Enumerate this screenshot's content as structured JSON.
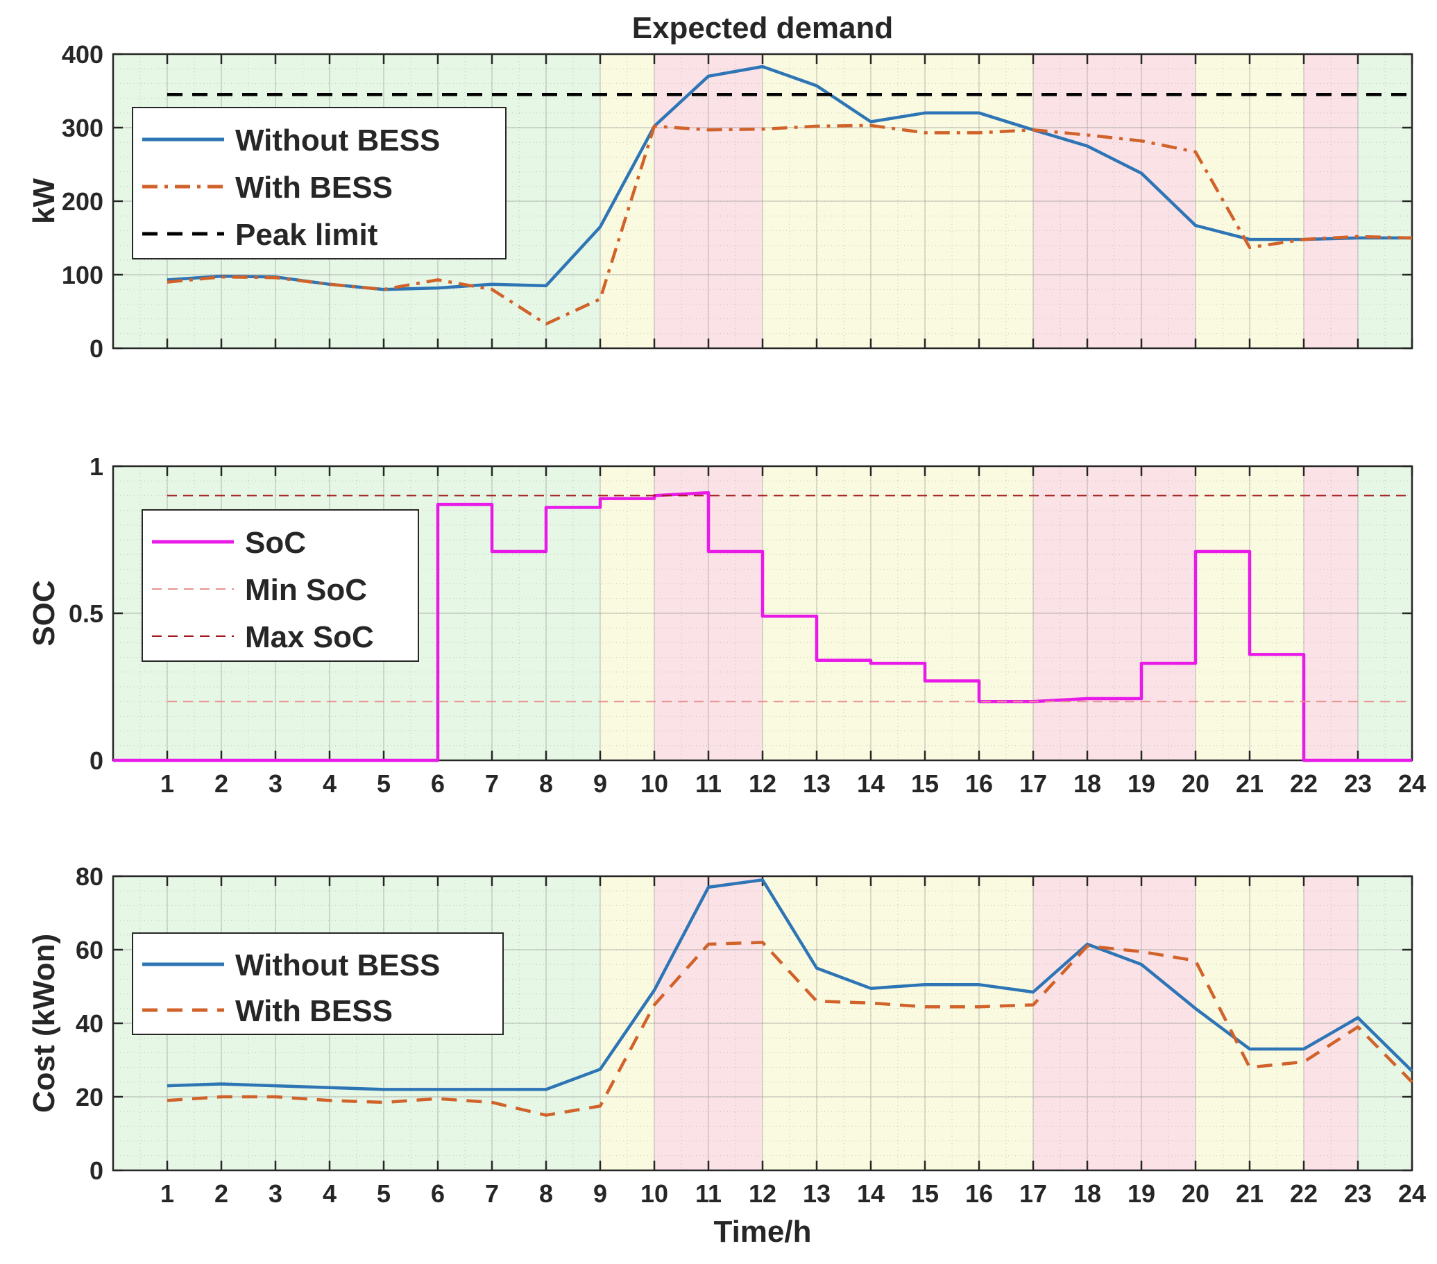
{
  "figure_title": "Expected demand",
  "xlabel": "Time/h",
  "x_ticks": [
    "1",
    "2",
    "3",
    "4",
    "5",
    "6",
    "7",
    "8",
    "9",
    "10",
    "11",
    "12",
    "13",
    "14",
    "15",
    "16",
    "17",
    "18",
    "19",
    "20",
    "21",
    "22",
    "23",
    "24"
  ],
  "colors": {
    "blue": "#2e75b6",
    "orange": "#d0622a",
    "magenta": "#e81ae8",
    "black": "#000000",
    "dark_red": "#a01818",
    "light_red": "#e89090",
    "offpeak": "#e6f7e6",
    "midpeak": "#fafae0",
    "onpeak": "#fae2e6"
  },
  "tariff_bands": [
    {
      "start": 0,
      "end": 9,
      "type": "offpeak"
    },
    {
      "start": 9,
      "end": 10,
      "type": "midpeak"
    },
    {
      "start": 10,
      "end": 12,
      "type": "onpeak"
    },
    {
      "start": 12,
      "end": 17,
      "type": "midpeak"
    },
    {
      "start": 17,
      "end": 20,
      "type": "onpeak"
    },
    {
      "start": 20,
      "end": 22,
      "type": "midpeak"
    },
    {
      "start": 22,
      "end": 23,
      "type": "onpeak"
    },
    {
      "start": 23,
      "end": 24,
      "type": "offpeak"
    }
  ],
  "chart_data": [
    {
      "type": "line",
      "title": "Expected demand",
      "ylabel": "kW",
      "xlabel": "",
      "xlim": [
        0,
        24
      ],
      "ylim": [
        0,
        400
      ],
      "y_ticks": [
        "0",
        "100",
        "200",
        "300",
        "400"
      ],
      "grid": true,
      "legend_position": "upper-left",
      "series": [
        {
          "name": "Without BESS",
          "style": "solid",
          "color": "blue",
          "x": [
            1,
            2,
            3,
            4,
            5,
            6,
            7,
            8,
            9,
            10,
            11,
            12,
            13,
            14,
            15,
            16,
            17,
            18,
            19,
            20,
            21,
            22,
            23,
            24
          ],
          "y": [
            93,
            98,
            97,
            87,
            80,
            82,
            87,
            85,
            165,
            302,
            370,
            383,
            357,
            308,
            320,
            320,
            297,
            275,
            238,
            167,
            148,
            148,
            150,
            150
          ]
        },
        {
          "name": "With BESS",
          "style": "dashdot",
          "color": "orange",
          "x": [
            1,
            2,
            3,
            4,
            5,
            6,
            7,
            8,
            9,
            10,
            11,
            12,
            13,
            14,
            15,
            16,
            17,
            18,
            19,
            20,
            21,
            22,
            23,
            24
          ],
          "y": [
            90,
            97,
            96,
            87,
            80,
            93,
            80,
            33,
            67,
            302,
            297,
            298,
            302,
            303,
            293,
            293,
            297,
            290,
            282,
            267,
            137,
            148,
            152,
            150
          ]
        },
        {
          "name": "Peak limit",
          "style": "dashed",
          "color": "black",
          "x": [
            1,
            24
          ],
          "y": [
            345,
            345
          ]
        }
      ]
    },
    {
      "type": "line",
      "title": "",
      "ylabel": "SOC",
      "xlabel": "",
      "xlim": [
        0,
        24
      ],
      "ylim": [
        0,
        1
      ],
      "y_ticks": [
        "0",
        "0.5",
        "1"
      ],
      "grid": true,
      "legend_position": "upper-left",
      "series": [
        {
          "name": "SoC",
          "style": "solid",
          "color": "magenta",
          "x": [
            0,
            6,
            6,
            7,
            7,
            8,
            8,
            9,
            9,
            10,
            10,
            11,
            11,
            12,
            12,
            13,
            13,
            14,
            14,
            15,
            15,
            16,
            16,
            17,
            17,
            18,
            18,
            19,
            19,
            20,
            20,
            21,
            21,
            22,
            22,
            24
          ],
          "y": [
            0,
            0,
            0.87,
            0.87,
            0.71,
            0.71,
            0.86,
            0.86,
            0.89,
            0.89,
            0.9,
            0.91,
            0.71,
            0.71,
            0.49,
            0.49,
            0.34,
            0.34,
            0.33,
            0.33,
            0.27,
            0.27,
            0.2,
            0.2,
            0.2,
            0.21,
            0.21,
            0.21,
            0.33,
            0.33,
            0.71,
            0.71,
            0.36,
            0.36,
            0,
            0
          ]
        },
        {
          "name": "Min SoC",
          "style": "dashed",
          "color": "light_red",
          "x": [
            1,
            24
          ],
          "y": [
            0.2,
            0.2
          ]
        },
        {
          "name": "Max SoC",
          "style": "dashed",
          "color": "dark_red",
          "x": [
            1,
            24
          ],
          "y": [
            0.9,
            0.9
          ]
        }
      ]
    },
    {
      "type": "line",
      "title": "",
      "ylabel": "Cost (kWon)",
      "xlabel": "Time/h",
      "xlim": [
        0,
        24
      ],
      "ylim": [
        0,
        80
      ],
      "y_ticks": [
        "0",
        "20",
        "40",
        "60",
        "80"
      ],
      "grid": true,
      "legend_position": "upper-left",
      "series": [
        {
          "name": "Without BESS",
          "style": "solid",
          "color": "blue",
          "x": [
            1,
            2,
            3,
            4,
            5,
            6,
            7,
            8,
            9,
            10,
            11,
            12,
            13,
            14,
            15,
            16,
            17,
            18,
            19,
            20,
            21,
            22,
            23,
            24
          ],
          "y": [
            23,
            23.5,
            23,
            22.5,
            22,
            22,
            22,
            22,
            27.5,
            49,
            77,
            79,
            55,
            49.5,
            50.5,
            50.5,
            48.5,
            61.5,
            56,
            44,
            33,
            33,
            41.5,
            27
          ]
        },
        {
          "name": "With BESS",
          "style": "dashed",
          "color": "orange",
          "x": [
            1,
            2,
            3,
            4,
            5,
            6,
            7,
            8,
            9,
            10,
            11,
            12,
            13,
            14,
            15,
            16,
            17,
            18,
            19,
            20,
            21,
            22,
            23,
            24
          ],
          "y": [
            19,
            20,
            20,
            19,
            18.5,
            19.5,
            18.5,
            15,
            17.5,
            45,
            61.5,
            62,
            46,
            45.5,
            44.5,
            44.5,
            45,
            61,
            59.5,
            57,
            28,
            29.5,
            39,
            24
          ]
        }
      ]
    }
  ]
}
